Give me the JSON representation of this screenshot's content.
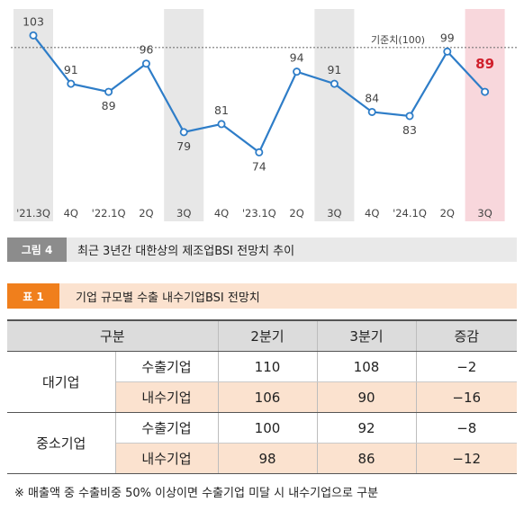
{
  "chart_data": {
    "type": "line",
    "categories": [
      "'21.3Q",
      "4Q",
      "'22.1Q",
      "2Q",
      "3Q",
      "4Q",
      "'23.1Q",
      "2Q",
      "3Q",
      "4Q",
      "'24.1Q",
      "2Q",
      "3Q"
    ],
    "values": [
      103,
      91,
      89,
      96,
      79,
      81,
      74,
      94,
      91,
      84,
      83,
      99,
      89
    ],
    "series_color": "#2e7dc8",
    "highlight_label_color": "#d0202c",
    "reference_line": {
      "value": 100,
      "label": "기준치(100)"
    },
    "shaded_categories": [
      "'21.3Q",
      "3Q",
      "3Q",
      "3Q"
    ],
    "highlight_category": "3Q",
    "ylim": [
      60,
      110
    ]
  },
  "figure_caption": {
    "tag": "그림 4",
    "text": "최근 3년간 대한상의 제조업BSI 전망치 추이"
  },
  "table_caption": {
    "tag": "표 1",
    "text": "기업 규모별 수출 내수기업BSI 전망치"
  },
  "table": {
    "headers": [
      "구분",
      "2분기",
      "3분기",
      "증감"
    ],
    "groups": [
      {
        "name": "대기업",
        "rows": [
          {
            "type": "수출기업",
            "q2": "110",
            "q3": "108",
            "change": "−2"
          },
          {
            "type": "내수기업",
            "q2": "106",
            "q3": "90",
            "change": "−16"
          }
        ]
      },
      {
        "name": "중소기업",
        "rows": [
          {
            "type": "수출기업",
            "q2": "100",
            "q3": "92",
            "change": "−8"
          },
          {
            "type": "내수기업",
            "q2": "98",
            "q3": "86",
            "change": "−12"
          }
        ]
      }
    ]
  },
  "footnote": "※ 매출액 중 수출비중 50% 이상이면 수출기업 미달 시 내수기업으로 구분"
}
